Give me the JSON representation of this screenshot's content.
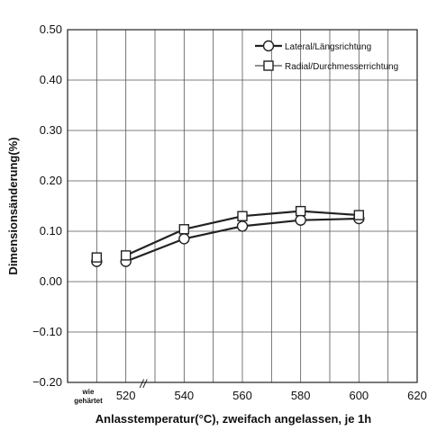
{
  "chart_data": {
    "type": "line",
    "xlabel": "Anlasstemperatur(°C), zweifach angelassen, je 1h",
    "ylabel": "Dimensionsänderung(%)",
    "xlim": [
      500,
      620
    ],
    "ylim": [
      -0.2,
      0.5
    ],
    "grid": true,
    "legend_position": "top-right",
    "x_categories": [
      "wie gehärtet",
      "520",
      "540",
      "560",
      "580",
      "600",
      "620"
    ],
    "x_break_label": "//",
    "as_hardened_label": [
      "wie",
      "gehärtet"
    ],
    "y_tick_labels": [
      "0.50",
      "0.40",
      "0.30",
      "0.20",
      "0.10",
      "0.00",
      "−0.10",
      "−0.20"
    ],
    "y_ticks": [
      0.5,
      0.4,
      0.3,
      0.2,
      0.1,
      0.0,
      -0.1,
      -0.2
    ],
    "series": [
      {
        "name": "Lateral/Längsrichtung",
        "marker": "circle",
        "as_hardened": 0.04,
        "x": [
          520,
          540,
          560,
          580,
          600
        ],
        "y": [
          0.04,
          0.085,
          0.11,
          0.122,
          0.125
        ]
      },
      {
        "name": "Radial/Durchmesserrichtung",
        "marker": "square",
        "as_hardened": 0.048,
        "x": [
          520,
          540,
          560,
          580,
          600
        ],
        "y": [
          0.052,
          0.104,
          0.13,
          0.14,
          0.132
        ]
      }
    ]
  }
}
